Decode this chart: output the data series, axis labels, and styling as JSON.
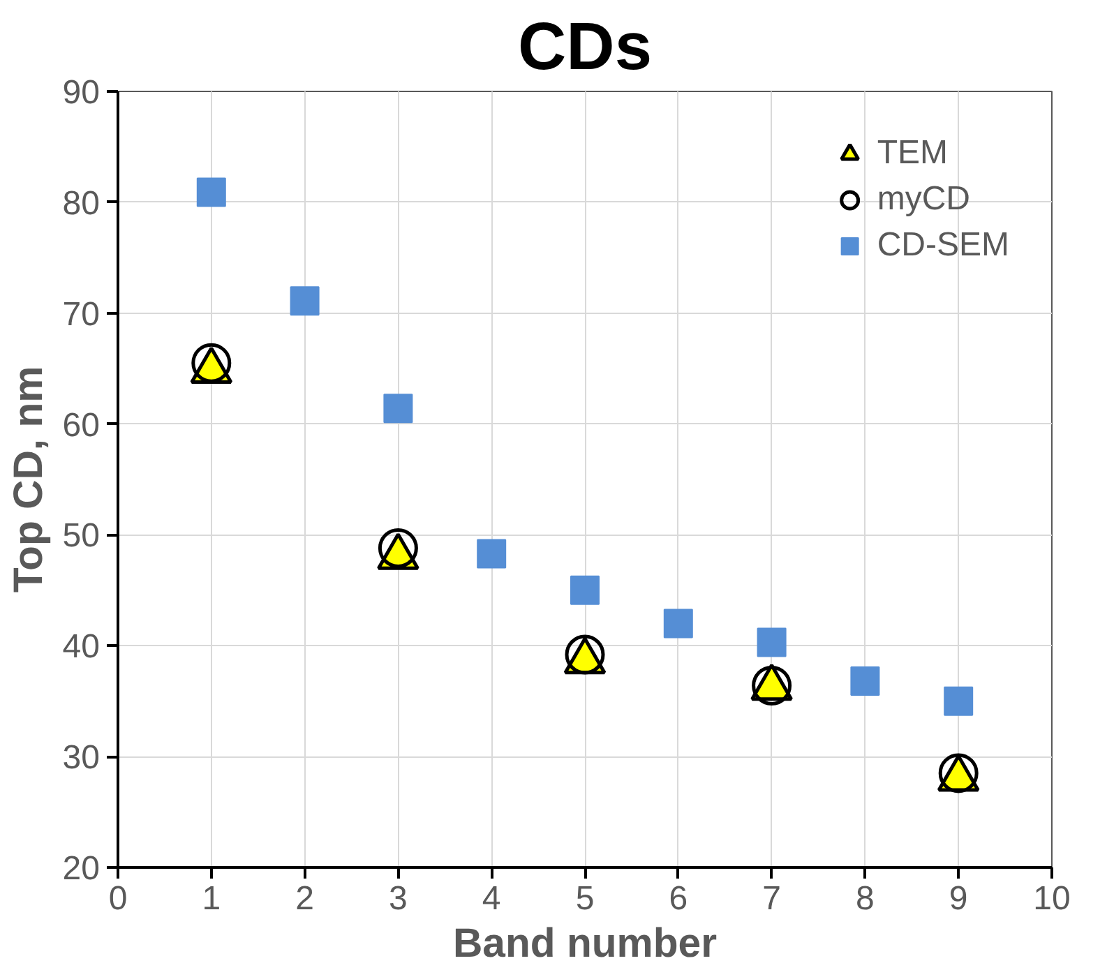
{
  "chart_data": {
    "type": "scatter",
    "title": "CDs",
    "xlabel": "Band number",
    "ylabel": "Top CD, nm",
    "xlim": [
      0,
      10
    ],
    "xticks": [
      0,
      1,
      2,
      3,
      4,
      5,
      6,
      7,
      8,
      9,
      10
    ],
    "ylim": [
      20,
      90
    ],
    "yticks": [
      20,
      30,
      40,
      50,
      60,
      70,
      80,
      90
    ],
    "grid": true,
    "legend": "top right",
    "series": [
      {
        "name": "TEM",
        "marker": "triangle",
        "color": "#ffff00",
        "x": [
          1,
          3,
          5,
          7,
          9
        ],
        "values": [
          64.8,
          48.0,
          38.6,
          36.2,
          28.0
        ]
      },
      {
        "name": "myCD",
        "marker": "circle",
        "color": "#000000",
        "x": [
          1,
          3,
          5,
          7,
          9
        ],
        "values": [
          65.5,
          48.8,
          39.2,
          36.4,
          28.5
        ]
      },
      {
        "name": "CD-SEM",
        "marker": "square",
        "color": "#558ed5",
        "x": [
          1,
          2,
          3,
          4,
          5,
          6,
          7,
          8,
          9
        ],
        "values": [
          80.9,
          71.1,
          61.4,
          48.3,
          45.0,
          42.0,
          40.3,
          36.8,
          35.0
        ]
      }
    ]
  }
}
